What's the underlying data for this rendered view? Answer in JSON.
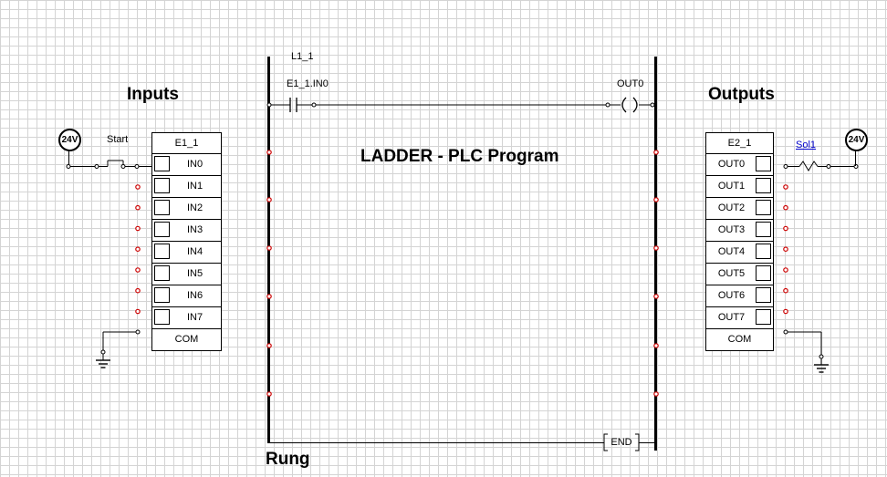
{
  "titles": {
    "inputs": "Inputs",
    "outputs": "Outputs",
    "program": "LADDER - PLC Program",
    "rung": "Rung"
  },
  "input_module": {
    "name": "E1_1",
    "rows": [
      "IN0",
      "IN1",
      "IN2",
      "IN3",
      "IN4",
      "IN5",
      "IN6",
      "IN7"
    ],
    "common": "COM"
  },
  "output_module": {
    "name": "E2_1",
    "rows": [
      "OUT0",
      "OUT1",
      "OUT2",
      "OUT3",
      "OUT4",
      "OUT5",
      "OUT6",
      "OUT7"
    ],
    "common": "COM"
  },
  "input_circuit": {
    "supply": "24V",
    "switch_label": "Start"
  },
  "output_circuit": {
    "supply": "24V",
    "load_label": "Sol1"
  },
  "ladder": {
    "rail_label": "L1_1",
    "contact_label": "E1_1.IN0",
    "coil_label": "OUT0",
    "end_label": "END"
  },
  "colors": {
    "grid": "#d4d4d4",
    "terminal": "#cc0000",
    "wire": "#000000",
    "link": "#0000cc"
  }
}
